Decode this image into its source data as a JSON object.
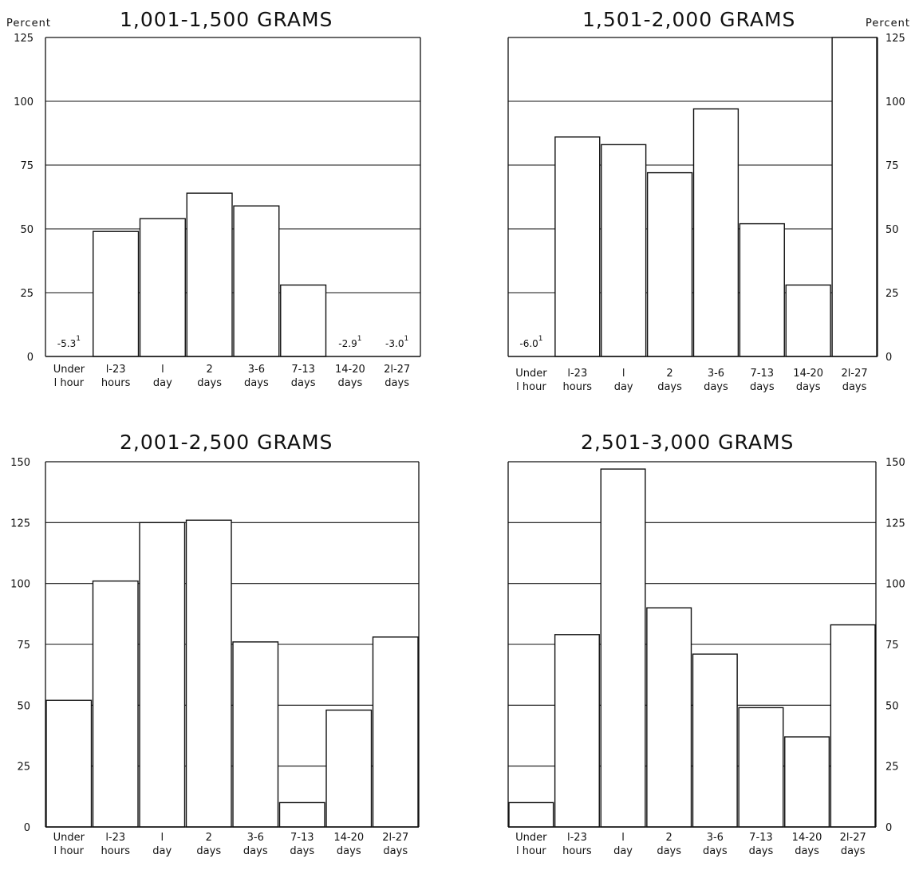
{
  "chart_data": [
    {
      "type": "bar",
      "title": "1,001-1,500 GRAMS",
      "ylabel": "Percent",
      "ylim": [
        0,
        125
      ],
      "yticks": [
        "0",
        "25",
        "50",
        "75",
        "100",
        "125"
      ],
      "categories": [
        [
          "Under",
          "l hour"
        ],
        [
          "l-23",
          "hours"
        ],
        [
          "l",
          "day"
        ],
        [
          "2",
          "days"
        ],
        [
          "3-6",
          "days"
        ],
        [
          "7-13",
          "days"
        ],
        [
          "14-20",
          "days"
        ],
        [
          "2l-27",
          "days"
        ]
      ],
      "values": [
        -5.3,
        49,
        54,
        64,
        59,
        28,
        -2.9,
        -3.0
      ],
      "data_labels": [
        "-5.3",
        "",
        "",
        "",
        "",
        "",
        "-2.9",
        "-3.0"
      ],
      "footnote_marker": "1",
      "axis_side": "left",
      "grid": true
    },
    {
      "type": "bar",
      "title": "1,501-2,000 GRAMS",
      "ylabel": "Percent",
      "ylim": [
        0,
        125
      ],
      "yticks": [
        "0",
        "25",
        "50",
        "75",
        "100",
        "125"
      ],
      "categories": [
        [
          "Under",
          "l hour"
        ],
        [
          "l-23",
          "hours"
        ],
        [
          "l",
          "day"
        ],
        [
          "2",
          "days"
        ],
        [
          "3-6",
          "days"
        ],
        [
          "7-13",
          "days"
        ],
        [
          "14-20",
          "days"
        ],
        [
          "2l-27",
          "days"
        ]
      ],
      "values": [
        -6.0,
        86,
        83,
        72,
        97,
        52,
        28,
        125
      ],
      "data_labels": [
        "-6.0",
        "",
        "",
        "",
        "",
        "",
        "",
        ""
      ],
      "footnote_marker": "1",
      "axis_side": "right",
      "grid": true
    },
    {
      "type": "bar",
      "title": "2,001-2,500 GRAMS",
      "ylabel": "",
      "ylim": [
        0,
        150
      ],
      "yticks": [
        "0",
        "25",
        "50",
        "75",
        "100",
        "125",
        "150"
      ],
      "categories": [
        [
          "Under",
          "l hour"
        ],
        [
          "l-23",
          "hours"
        ],
        [
          "l",
          "day"
        ],
        [
          "2",
          "days"
        ],
        [
          "3-6",
          "days"
        ],
        [
          "7-13",
          "days"
        ],
        [
          "14-20",
          "days"
        ],
        [
          "2l-27",
          "days"
        ]
      ],
      "values": [
        52,
        101,
        125,
        126,
        76,
        10,
        48,
        78
      ],
      "data_labels": [
        "",
        "",
        "",
        "",
        "",
        "",
        "",
        ""
      ],
      "footnote_marker": "",
      "axis_side": "left",
      "grid": true
    },
    {
      "type": "bar",
      "title": "2,501-3,000 GRAMS",
      "ylabel": "",
      "ylim": [
        0,
        150
      ],
      "yticks": [
        "0",
        "25",
        "50",
        "75",
        "100",
        "125",
        "150"
      ],
      "categories": [
        [
          "Under",
          "l hour"
        ],
        [
          "l-23",
          "hours"
        ],
        [
          "l",
          "day"
        ],
        [
          "2",
          "days"
        ],
        [
          "3-6",
          "days"
        ],
        [
          "7-13",
          "days"
        ],
        [
          "14-20",
          "days"
        ],
        [
          "2l-27",
          "days"
        ]
      ],
      "values": [
        10,
        79,
        147,
        90,
        71,
        49,
        37,
        83
      ],
      "data_labels": [
        "",
        "",
        "",
        "",
        "",
        "",
        "",
        ""
      ],
      "footnote_marker": "",
      "axis_side": "right",
      "grid": true
    }
  ]
}
